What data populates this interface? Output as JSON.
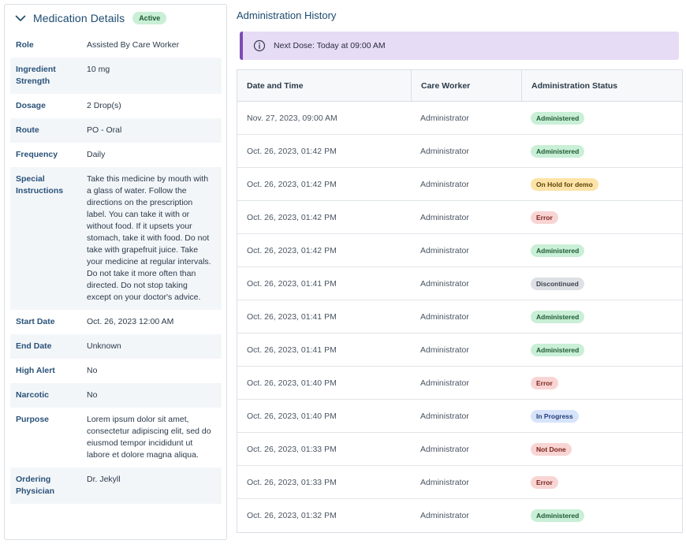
{
  "details_panel": {
    "title": "Medication Details",
    "status_badge": "Active",
    "rows": [
      {
        "label": "Role",
        "value": "Assisted By Care Worker"
      },
      {
        "label": "Ingredient Strength",
        "value": "10 mg"
      },
      {
        "label": "Dosage",
        "value": "2 Drop(s)"
      },
      {
        "label": "Route",
        "value": "PO - Oral"
      },
      {
        "label": "Frequency",
        "value": "Daily"
      },
      {
        "label": "Special Instructions",
        "value": "Take this medicine by mouth with a glass of water. Follow the directions on the prescription label. You can take it with or without food. If it upsets your stomach, take it with food. Do not take with grapefruit juice. Take your medicine at regular intervals. Do not take it more often than directed. Do not stop taking except on your doctor's advice."
      },
      {
        "label": "Start Date",
        "value": "Oct. 26, 2023 12:00 AM"
      },
      {
        "label": "End Date",
        "value": "Unknown"
      },
      {
        "label": "High Alert",
        "value": "No"
      },
      {
        "label": "Narcotic",
        "value": "No"
      },
      {
        "label": "Purpose",
        "value": "Lorem ipsum dolor sit amet, consectetur adipiscing elit, sed do eiusmod tempor incididunt ut labore et dolore magna aliqua."
      },
      {
        "label": "Ordering Physician",
        "value": "Dr. Jekyll"
      }
    ]
  },
  "history": {
    "title": "Administration History",
    "next_dose": "Next Dose: Today at 09:00 AM",
    "columns": [
      "Date and Time",
      "Care Worker",
      "Administration Status"
    ],
    "rows": [
      {
        "datetime": "Nov. 27, 2023, 09:00 AM",
        "worker": "Administrator",
        "status": "Administered",
        "kind": "administered"
      },
      {
        "datetime": "Oct. 26, 2023, 01:42 PM",
        "worker": "Administrator",
        "status": "Administered",
        "kind": "administered"
      },
      {
        "datetime": "Oct. 26, 2023, 01:42 PM",
        "worker": "Administrator",
        "status": "On Hold for demo",
        "kind": "hold"
      },
      {
        "datetime": "Oct. 26, 2023, 01:42 PM",
        "worker": "Administrator",
        "status": "Error",
        "kind": "error"
      },
      {
        "datetime": "Oct. 26, 2023, 01:42 PM",
        "worker": "Administrator",
        "status": "Administered",
        "kind": "administered"
      },
      {
        "datetime": "Oct. 26, 2023, 01:41 PM",
        "worker": "Administrator",
        "status": "Discontinued",
        "kind": "discontinued"
      },
      {
        "datetime": "Oct. 26, 2023, 01:41 PM",
        "worker": "Administrator",
        "status": "Administered",
        "kind": "administered"
      },
      {
        "datetime": "Oct. 26, 2023, 01:41 PM",
        "worker": "Administrator",
        "status": "Administered",
        "kind": "administered"
      },
      {
        "datetime": "Oct. 26, 2023, 01:40 PM",
        "worker": "Administrator",
        "status": "Error",
        "kind": "error"
      },
      {
        "datetime": "Oct. 26, 2023, 01:40 PM",
        "worker": "Administrator",
        "status": "In Progress",
        "kind": "progress"
      },
      {
        "datetime": "Oct. 26, 2023, 01:33 PM",
        "worker": "Administrator",
        "status": "Not Done",
        "kind": "notdone"
      },
      {
        "datetime": "Oct. 26, 2023, 01:33 PM",
        "worker": "Administrator",
        "status": "Error",
        "kind": "error"
      },
      {
        "datetime": "Oct. 26, 2023, 01:32 PM",
        "worker": "Administrator",
        "status": "Administered",
        "kind": "administered"
      }
    ]
  },
  "colors": {
    "title_blue": "#1c4a6e",
    "label_blue": "#2a5279",
    "next_dose_bg": "#e6dcf6",
    "next_dose_accent": "#7b4bb5"
  }
}
